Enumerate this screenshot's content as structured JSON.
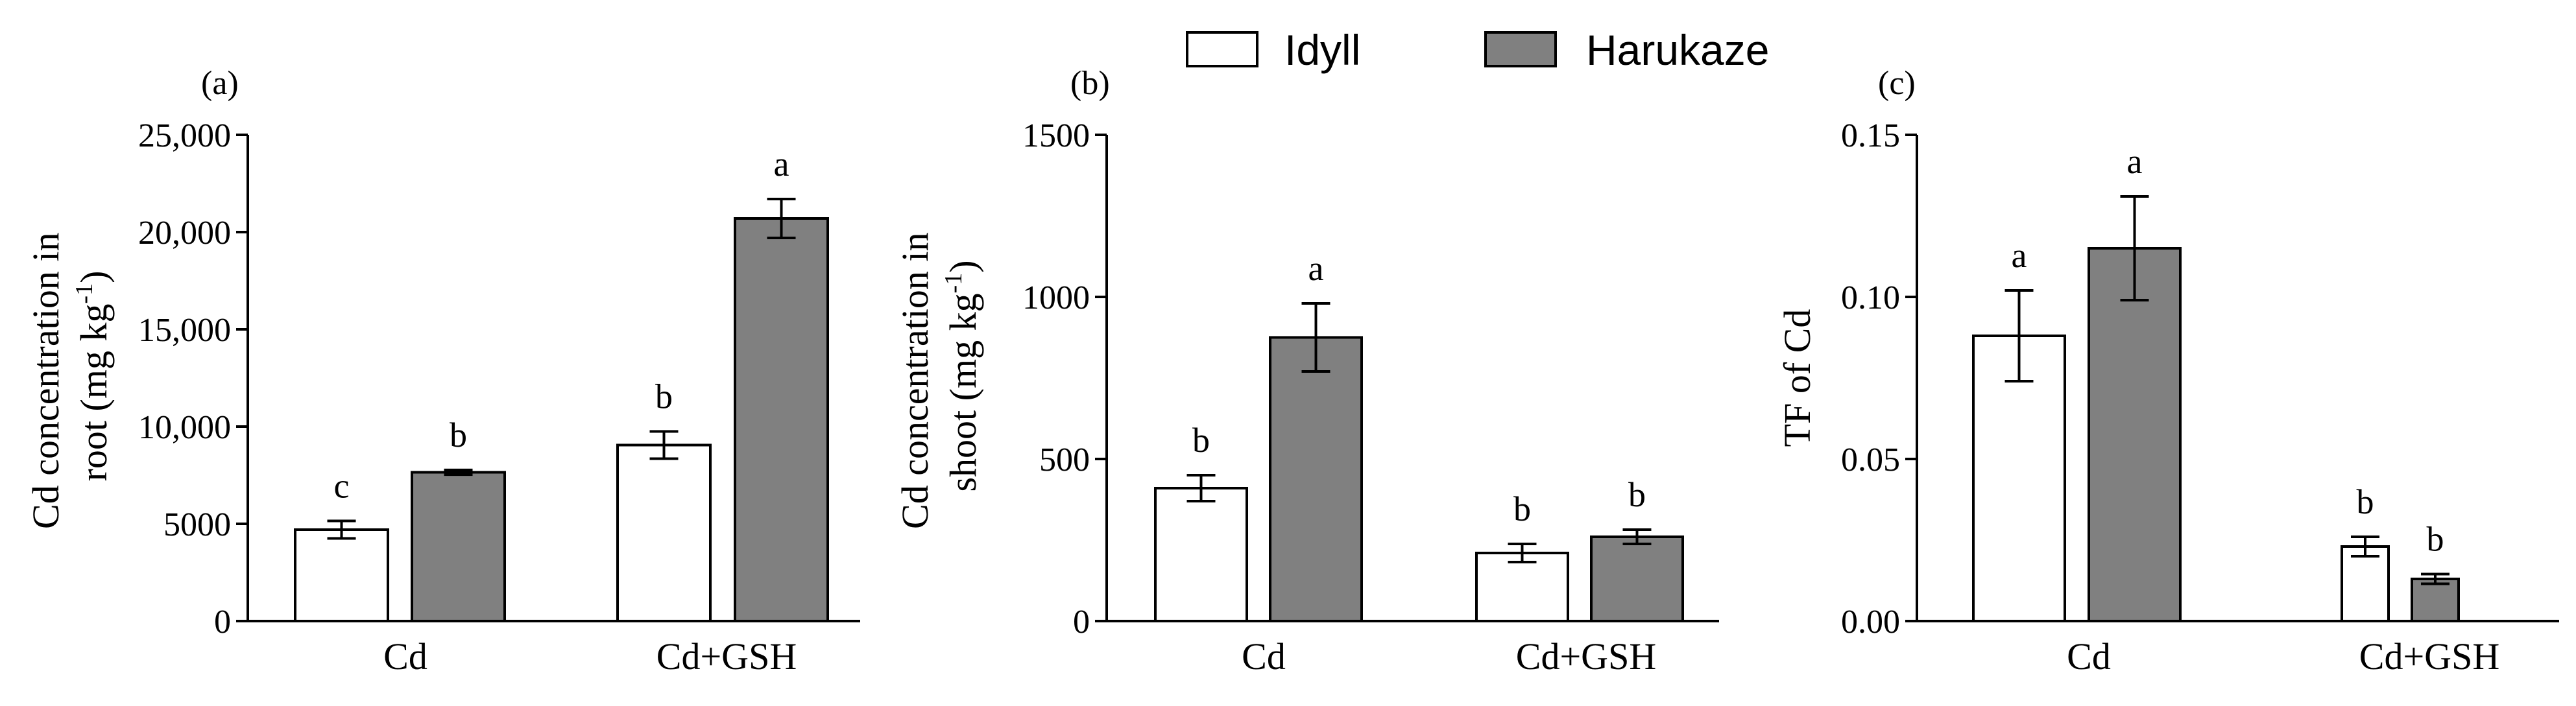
{
  "colors": {
    "idyll_fill": "#ffffff",
    "harukaze_fill": "#808080",
    "stroke": "#000000"
  },
  "legend": [
    {
      "name": "Idyll",
      "color": "#ffffff"
    },
    {
      "name": "Harukaze",
      "color": "#808080"
    }
  ],
  "chart_data": [
    {
      "type": "bar",
      "panel_label": "(a)",
      "title": "",
      "ylabel_line1": "Cd concentration in",
      "ylabel_line2": "root",
      "ylabel_unit": "(mg kg",
      "ylabel_exp": "-1",
      "ylim": [
        0,
        25000
      ],
      "yticks": [
        0,
        5000,
        10000,
        15000,
        20000,
        25000
      ],
      "ytick_labels": [
        "0",
        "5000",
        "10,000",
        "15,000",
        "20,000",
        "25,000"
      ],
      "categories": [
        "Cd",
        "Cd+GSH"
      ],
      "series": [
        {
          "name": "Idyll",
          "values": [
            4700,
            9050
          ],
          "errors": [
            450,
            700
          ],
          "letters": [
            "c",
            "b"
          ]
        },
        {
          "name": "Harukaze",
          "values": [
            7650,
            20700
          ],
          "errors": [
            120,
            1000
          ],
          "letters": [
            "b",
            "a"
          ]
        }
      ]
    },
    {
      "type": "bar",
      "panel_label": "(b)",
      "title": "",
      "ylabel_line1": "Cd concentration in",
      "ylabel_line2": "shoot",
      "ylabel_unit": "(mg kg",
      "ylabel_exp": "-1",
      "ylim": [
        0,
        1500
      ],
      "yticks": [
        0,
        500,
        1000,
        1500
      ],
      "ytick_labels": [
        "0",
        "500",
        "1000",
        "1500"
      ],
      "categories": [
        "Cd",
        "Cd+GSH"
      ],
      "series": [
        {
          "name": "Idyll",
          "values": [
            410,
            210
          ],
          "errors": [
            40,
            28
          ],
          "letters": [
            "b",
            "b"
          ]
        },
        {
          "name": "Harukaze",
          "values": [
            875,
            260
          ],
          "errors": [
            105,
            22
          ],
          "letters": [
            "a",
            "b"
          ]
        }
      ]
    },
    {
      "type": "bar",
      "panel_label": "(c)",
      "title": "",
      "ylabel": "TF of Cd",
      "ylim": [
        0,
        0.15
      ],
      "yticks": [
        0,
        0.05,
        0.1,
        0.15
      ],
      "ytick_labels": [
        "0.00",
        "0.05",
        "0.10",
        "0.15"
      ],
      "categories": [
        "Cd",
        "Cd+GSH"
      ],
      "series": [
        {
          "name": "Idyll",
          "values": [
            0.088,
            0.023
          ],
          "errors": [
            0.014,
            0.003
          ],
          "letters": [
            "a",
            "b"
          ]
        },
        {
          "name": "Harukaze",
          "values": [
            0.115,
            0.013
          ],
          "errors": [
            0.016,
            0.0015
          ],
          "letters": [
            "a",
            "b"
          ]
        }
      ]
    }
  ]
}
